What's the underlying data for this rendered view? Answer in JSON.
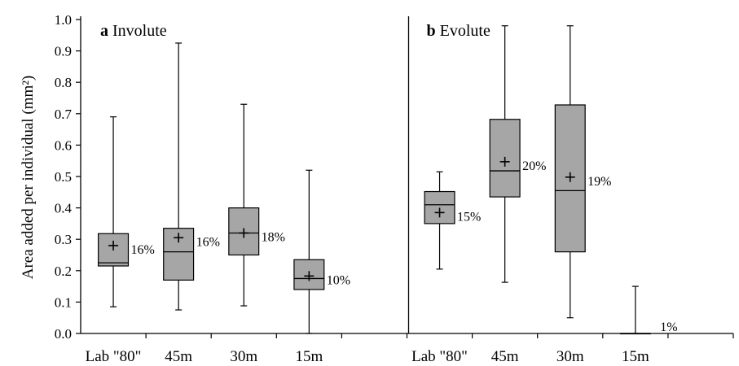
{
  "chart_data": {
    "type": "box",
    "ylabel": "Area added per individual (mm²)",
    "ylim": [
      0,
      1.0
    ],
    "yticks": [
      "0.0",
      "0.1",
      "0.2",
      "0.3",
      "0.4",
      "0.5",
      "0.6",
      "0.7",
      "0.8",
      "0.9",
      "1.0"
    ],
    "box_fill": "#a6a6a6",
    "panels": [
      {
        "label": "a",
        "title": "Involute",
        "groups": [
          {
            "category": "Lab \"80\"",
            "min": 0.085,
            "q1": 0.215,
            "median": 0.225,
            "q3": 0.318,
            "max": 0.69,
            "mean": 0.28,
            "pct": "16%"
          },
          {
            "category": "45m",
            "min": 0.075,
            "q1": 0.17,
            "median": 0.26,
            "q3": 0.335,
            "max": 0.925,
            "mean": 0.305,
            "pct": "16%"
          },
          {
            "category": "30m",
            "min": 0.088,
            "q1": 0.25,
            "median": 0.32,
            "q3": 0.4,
            "max": 0.73,
            "mean": 0.32,
            "pct": "18%"
          },
          {
            "category": "15m",
            "min": 0.0,
            "q1": 0.14,
            "median": 0.175,
            "q3": 0.235,
            "max": 0.52,
            "mean": 0.183,
            "pct": "10%"
          }
        ]
      },
      {
        "label": "b",
        "title": "Evolute",
        "groups": [
          {
            "category": "Lab \"80\"",
            "min": 0.205,
            "q1": 0.35,
            "median": 0.41,
            "q3": 0.452,
            "max": 0.515,
            "mean": 0.385,
            "pct": "15%"
          },
          {
            "category": "45m",
            "min": 0.163,
            "q1": 0.435,
            "median": 0.518,
            "q3": 0.682,
            "max": 0.98,
            "mean": 0.547,
            "pct": "20%"
          },
          {
            "category": "30m",
            "min": 0.05,
            "q1": 0.26,
            "median": 0.455,
            "q3": 0.728,
            "max": 0.98,
            "mean": 0.498,
            "pct": "19%"
          },
          {
            "category": "15m",
            "min": 0.0,
            "q1": 0.0,
            "median": 0.0,
            "q3": 0.0,
            "max": 0.15,
            "mean": 0.0,
            "pct": "1%"
          }
        ]
      }
    ]
  }
}
